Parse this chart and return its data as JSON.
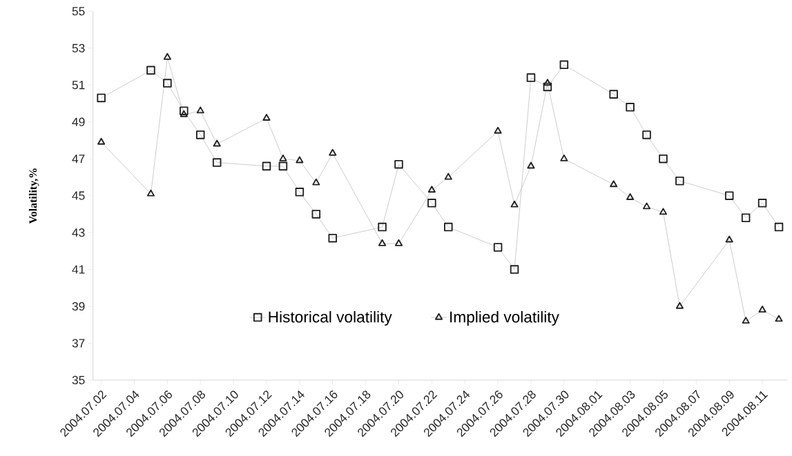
{
  "chart_data": {
    "type": "line",
    "ylabel": "Volatility,%",
    "x": [
      "2004-07-02",
      "2004-07-05",
      "2004-07-06",
      "2004-07-07",
      "2004-07-08",
      "2004-07-09",
      "2004-07-12",
      "2004-07-13",
      "2004-07-14",
      "2004-07-15",
      "2004-07-16",
      "2004-07-19",
      "2004-07-20",
      "2004-07-22",
      "2004-07-23",
      "2004-07-26",
      "2004-07-27",
      "2004-07-28",
      "2004-07-29",
      "2004-07-30",
      "2004-08-02",
      "2004-08-03",
      "2004-08-04",
      "2004-08-05",
      "2004-08-06",
      "2004-08-09",
      "2004-08-10",
      "2004-08-11",
      "2004-08-12"
    ],
    "series": [
      {
        "name": "Historical volatility",
        "color": "#222222",
        "marker": "square",
        "values": [
          50.3,
          51.8,
          51.1,
          49.6,
          48.3,
          46.8,
          46.6,
          46.6,
          45.2,
          44.0,
          42.7,
          43.3,
          46.7,
          44.6,
          43.3,
          42.2,
          41.0,
          51.4,
          50.9,
          52.1,
          50.5,
          49.8,
          48.3,
          47.0,
          45.8,
          45.0,
          43.8,
          44.6,
          43.3
        ]
      },
      {
        "name": "Implied volatility",
        "color": "#222222",
        "marker": "triangle",
        "values": [
          47.9,
          45.1,
          52.5,
          49.4,
          49.6,
          47.8,
          49.2,
          47.0,
          46.9,
          45.7,
          47.3,
          42.4,
          42.4,
          45.3,
          46.0,
          48.5,
          44.5,
          46.6,
          51.1,
          47.0,
          45.6,
          44.9,
          44.4,
          44.1,
          39.0,
          42.6,
          38.2,
          38.8,
          38.3
        ]
      }
    ],
    "xlim": [
      "2004-07-01T12:00",
      "2004-08-12T12:00"
    ],
    "xticks": [
      {
        "value": "2004-07-02",
        "label": "2004.07.02"
      },
      {
        "value": "2004-07-04",
        "label": "2004.07.04"
      },
      {
        "value": "2004-07-06",
        "label": "2004.07.06"
      },
      {
        "value": "2004-07-08",
        "label": "2004.07.08"
      },
      {
        "value": "2004-07-10",
        "label": "2004.07.10"
      },
      {
        "value": "2004-07-12",
        "label": "2004.07.12"
      },
      {
        "value": "2004-07-14",
        "label": "2004.07.14"
      },
      {
        "value": "2004-07-16",
        "label": "2004.07.16"
      },
      {
        "value": "2004-07-18",
        "label": "2004.07.18"
      },
      {
        "value": "2004-07-20",
        "label": "2004.07.20"
      },
      {
        "value": "2004-07-22",
        "label": "2004.07.22"
      },
      {
        "value": "2004-07-24",
        "label": "2004.07.24"
      },
      {
        "value": "2004-07-26",
        "label": "2004.07.26"
      },
      {
        "value": "2004-07-28",
        "label": "2004.07.28"
      },
      {
        "value": "2004-07-30",
        "label": "2004.07.30"
      },
      {
        "value": "2004-08-01",
        "label": "2004.08.01"
      },
      {
        "value": "2004-08-03",
        "label": "2004.08.03"
      },
      {
        "value": "2004-08-05",
        "label": "2004.08.05"
      },
      {
        "value": "2004-08-07",
        "label": "2004.08.07"
      },
      {
        "value": "2004-08-09",
        "label": "2004.08.09"
      },
      {
        "value": "2004-08-11",
        "label": "2004.08.11"
      }
    ],
    "ylim": [
      35,
      55
    ],
    "yticks": [
      35,
      37,
      39,
      41,
      43,
      45,
      47,
      49,
      51,
      53,
      55
    ],
    "legend": "bottom",
    "grid": false
  }
}
